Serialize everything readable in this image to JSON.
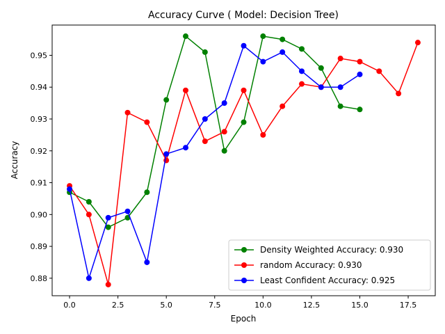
{
  "chart_data": {
    "type": "line",
    "title": "Accuracy Curve ( Model: Decision Tree)",
    "xlabel": "Epoch",
    "ylabel": "Accuracy",
    "xlim": [
      -0.9,
      18.9
    ],
    "ylim": [
      0.8745,
      0.9595
    ],
    "xticks": [
      0.0,
      2.5,
      5.0,
      7.5,
      10.0,
      12.5,
      15.0,
      17.5
    ],
    "xtick_labels": [
      "0.0",
      "2.5",
      "5.0",
      "7.5",
      "10.0",
      "12.5",
      "15.0",
      "17.5"
    ],
    "yticks": [
      0.88,
      0.89,
      0.9,
      0.91,
      0.92,
      0.93,
      0.94,
      0.95
    ],
    "ytick_labels": [
      "0.88",
      "0.89",
      "0.90",
      "0.91",
      "0.92",
      "0.93",
      "0.94",
      "0.95"
    ],
    "grid": false,
    "legend_position": "lower-right",
    "series": [
      {
        "name": "Density Weighted Accuracy: 0.930",
        "color": "#008000",
        "x": [
          0,
          1,
          2,
          3,
          4,
          5,
          6,
          7,
          8,
          9,
          10,
          11,
          12,
          13,
          14,
          15
        ],
        "y": [
          0.907,
          0.904,
          0.896,
          0.899,
          0.907,
          0.936,
          0.956,
          0.951,
          0.92,
          0.929,
          0.956,
          0.955,
          0.952,
          0.946,
          0.934,
          0.933
        ]
      },
      {
        "name": "random Accuracy: 0.930",
        "color": "#ff0000",
        "x": [
          0,
          1,
          2,
          3,
          4,
          5,
          6,
          7,
          8,
          9,
          10,
          11,
          12,
          13,
          14,
          15,
          16,
          17,
          18
        ],
        "y": [
          0.909,
          0.9,
          0.878,
          0.932,
          0.929,
          0.917,
          0.939,
          0.923,
          0.926,
          0.939,
          0.925,
          0.934,
          0.941,
          0.94,
          0.949,
          0.948,
          0.945,
          0.938,
          0.954
        ]
      },
      {
        "name": "Least Confident Accuracy: 0.925",
        "color": "#0000ff",
        "x": [
          0,
          1,
          2,
          3,
          4,
          5,
          6,
          7,
          8,
          9,
          10,
          11,
          12,
          13,
          14,
          15
        ],
        "y": [
          0.908,
          0.88,
          0.899,
          0.901,
          0.885,
          0.919,
          0.921,
          0.93,
          0.935,
          0.953,
          0.948,
          0.951,
          0.945,
          0.94,
          0.94,
          0.944
        ]
      }
    ]
  }
}
